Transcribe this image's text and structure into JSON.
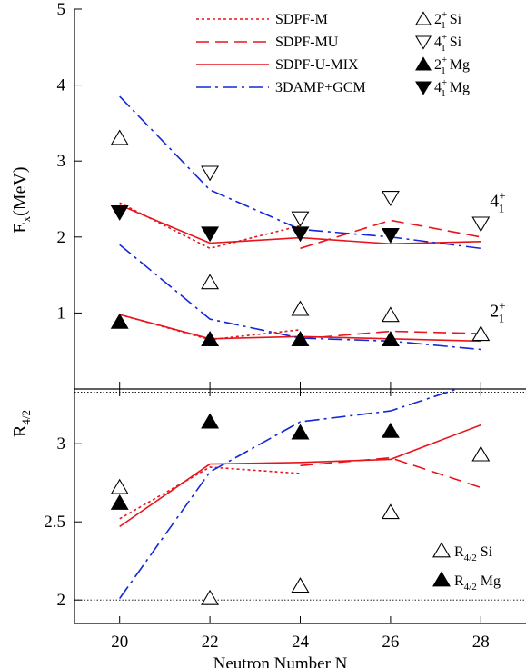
{
  "colors": {
    "theory": "#e8141b",
    "gcm": "#1428d8",
    "ink": "#000000"
  },
  "chart_data": [
    {
      "type": "line",
      "panel": "top",
      "ylabel": "E",
      "ylabel_sub": "x",
      "ylabel_unit": "(MeV)",
      "ylim": [
        0,
        5
      ],
      "yticks": [
        1,
        2,
        3,
        4,
        5
      ],
      "xlim": [
        19,
        29
      ],
      "xticks": [
        20,
        22,
        24,
        26,
        28
      ],
      "grid": false,
      "legend": "top",
      "legend_lines": [
        {
          "key": "sdpf_m",
          "label": "SDPF-M",
          "style": "dotted",
          "color": "#e8141b"
        },
        {
          "key": "sdpf_mu",
          "label": "SDPF-MU",
          "style": "dashed",
          "color": "#e8141b"
        },
        {
          "key": "sdpf_u_mix",
          "label": "SDPF-U-MIX",
          "style": "solid",
          "color": "#e8141b"
        },
        {
          "key": "damp",
          "label": "3DAMP+GCM",
          "style": "dashdot",
          "color": "#1428d8"
        }
      ],
      "legend_markers": [
        {
          "marker": "triangle-up-open",
          "text": "2",
          "sup": "+",
          "sub": "1",
          "nucleus": "Si"
        },
        {
          "marker": "triangle-down-open",
          "text": "4",
          "sup": "+",
          "sub": "1",
          "nucleus": "Si"
        },
        {
          "marker": "triangle-up-filled",
          "text": "2",
          "sup": "+",
          "sub": "1",
          "nucleus": "Mg"
        },
        {
          "marker": "triangle-down-filled",
          "text": "4",
          "sup": "+",
          "sub": "1",
          "nucleus": "Mg"
        }
      ],
      "annotations": [
        {
          "text": "4",
          "sup": "+",
          "sub": "1",
          "at": [
            28.2,
            2.4
          ]
        },
        {
          "text": "2",
          "sup": "+",
          "sub": "1",
          "at": [
            28.2,
            0.95
          ]
        }
      ],
      "lines": [
        {
          "key": "sdpf_m",
          "style": "dotted",
          "color": "#e8141b",
          "segments": [
            [
              [
                20,
                2.45
              ],
              [
                22,
                1.85
              ],
              [
                24,
                2.15
              ]
            ],
            [
              [
                20,
                0.98
              ],
              [
                22,
                0.65
              ],
              [
                24,
                0.78
              ]
            ]
          ]
        },
        {
          "key": "sdpf_mu",
          "style": "dashed",
          "color": "#e8141b",
          "segments": [
            [
              [
                24,
                1.85
              ],
              [
                26,
                2.22
              ],
              [
                28,
                2.0
              ]
            ],
            [
              [
                24,
                0.66
              ],
              [
                26,
                0.76
              ],
              [
                28,
                0.73
              ]
            ]
          ]
        },
        {
          "key": "sdpf_u_mix",
          "style": "solid",
          "color": "#e8141b",
          "segments": [
            [
              [
                20,
                2.42
              ],
              [
                22,
                1.92
              ],
              [
                24,
                1.99
              ],
              [
                26,
                1.91
              ],
              [
                28,
                1.94
              ]
            ],
            [
              [
                20,
                0.98
              ],
              [
                22,
                0.66
              ],
              [
                24,
                0.69
              ],
              [
                26,
                0.66
              ],
              [
                28,
                0.63
              ]
            ]
          ]
        },
        {
          "key": "damp",
          "style": "dashdot",
          "color": "#1428d8",
          "segments": [
            [
              [
                20,
                3.85
              ],
              [
                22,
                2.62
              ],
              [
                24,
                2.1
              ],
              [
                26,
                2.0
              ],
              [
                28,
                1.85
              ]
            ],
            [
              [
                20,
                1.9
              ],
              [
                22,
                0.92
              ],
              [
                24,
                0.67
              ],
              [
                26,
                0.63
              ],
              [
                28,
                0.52
              ]
            ]
          ]
        }
      ],
      "points": [
        {
          "marker": "triangle-up-open",
          "label": "2+ Si",
          "data": [
            [
              20,
              3.3
            ],
            [
              22,
              1.4
            ],
            [
              24,
              1.05
            ],
            [
              26,
              0.97
            ],
            [
              28,
              0.72
            ]
          ]
        },
        {
          "marker": "triangle-down-open",
          "label": "4+ Si",
          "data": [
            [
              22,
              2.85
            ],
            [
              24,
              2.25
            ],
            [
              26,
              2.52
            ],
            [
              28,
              2.18
            ]
          ]
        },
        {
          "marker": "triangle-up-filled",
          "label": "2+ Mg",
          "data": [
            [
              20,
              0.88
            ],
            [
              22,
              0.65
            ],
            [
              24,
              0.65
            ],
            [
              26,
              0.65
            ]
          ]
        },
        {
          "marker": "triangle-down-filled",
          "label": "4+ Mg",
          "data": [
            [
              20,
              2.33
            ],
            [
              22,
              2.05
            ],
            [
              24,
              2.05
            ],
            [
              26,
              2.03
            ]
          ]
        }
      ]
    },
    {
      "type": "line",
      "panel": "bottom",
      "ylabel": "R",
      "ylabel_sub": "4/2",
      "ylim": [
        1.85,
        3.35
      ],
      "yticks": [
        2,
        2.5,
        3
      ],
      "ytick_labels": [
        "2",
        "2.5",
        "3"
      ],
      "xlim": [
        19,
        29
      ],
      "xticks": [
        20,
        22,
        24,
        26,
        28
      ],
      "xtick_labels": [
        "20",
        "22",
        "24",
        "26",
        "28"
      ],
      "xlabel": "Neutron Number N",
      "reference_lines": [
        2.0,
        3.33
      ],
      "grid": false,
      "legend": "bottom-right",
      "legend_markers": [
        {
          "marker": "triangle-up-open",
          "text": "R",
          "sub": "4/2",
          "nucleus": "Si"
        },
        {
          "marker": "triangle-up-filled",
          "text": "R",
          "sub": "4/2",
          "nucleus": "Mg"
        }
      ],
      "lines": [
        {
          "key": "sdpf_m",
          "style": "dotted",
          "color": "#e8141b",
          "segments": [
            [
              [
                20,
                2.52
              ],
              [
                22,
                2.85
              ],
              [
                24,
                2.81
              ]
            ]
          ]
        },
        {
          "key": "sdpf_mu",
          "style": "dashed",
          "color": "#e8141b",
          "segments": [
            [
              [
                24,
                2.86
              ],
              [
                26,
                2.91
              ],
              [
                28,
                2.72
              ]
            ]
          ]
        },
        {
          "key": "sdpf_u_mix",
          "style": "solid",
          "color": "#e8141b",
          "segments": [
            [
              [
                20,
                2.47
              ],
              [
                22,
                2.87
              ],
              [
                24,
                2.88
              ],
              [
                26,
                2.9
              ],
              [
                28,
                3.12
              ]
            ]
          ]
        },
        {
          "key": "damp",
          "style": "dashdot",
          "color": "#1428d8",
          "segments": [
            [
              [
                20,
                2.01
              ],
              [
                22,
                2.82
              ],
              [
                24,
                3.14
              ],
              [
                26,
                3.21
              ],
              [
                28,
                3.4
              ]
            ]
          ]
        }
      ],
      "points": [
        {
          "marker": "triangle-up-open",
          "label": "R4/2 Si",
          "data": [
            [
              20,
              2.72
            ],
            [
              22,
              2.01
            ],
            [
              24,
              2.09
            ],
            [
              26,
              2.56
            ],
            [
              28,
              2.93
            ]
          ]
        },
        {
          "marker": "triangle-up-filled",
          "label": "R4/2 Mg",
          "data": [
            [
              20,
              2.62
            ],
            [
              22,
              3.14
            ],
            [
              24,
              3.07
            ],
            [
              26,
              3.08
            ]
          ]
        }
      ]
    }
  ]
}
